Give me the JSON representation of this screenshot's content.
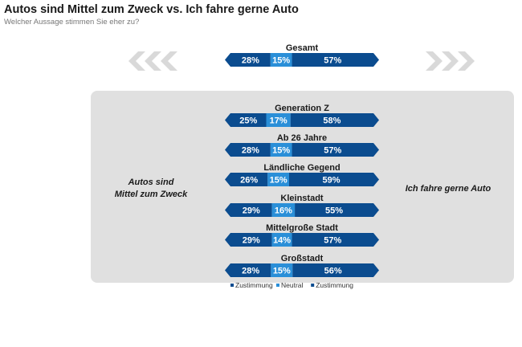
{
  "title": "Autos sind Mittel zum Zweck vs. Ich fahre gerne Auto",
  "subtitle": "Welcher Aussage stimmen Sie eher zu?",
  "colors": {
    "agree_left": "#0b4c8f",
    "neutral": "#2a8fd8",
    "agree_right": "#0b4c8f",
    "panel": "#e0e0e0",
    "chevrons": "#d9d9d9"
  },
  "chart_data": {
    "type": "bar",
    "orientation": "horizontal-stacked",
    "left_label": "Autos sind Mittel zum Zweck",
    "left_label_lines": [
      "Autos sind",
      "Mittel zum Zweck"
    ],
    "right_label": "Ich fahre gerne Auto",
    "categories": [
      "Gesamt",
      "Generation Z",
      "Ab 26 Jahre",
      "Ländliche Gegend",
      "Kleinstadt",
      "Mittelgroße Stadt",
      "Großstadt"
    ],
    "series": [
      {
        "name": "Zustimmung",
        "values": [
          28,
          25,
          28,
          26,
          29,
          29,
          28
        ]
      },
      {
        "name": "Neutral",
        "values": [
          15,
          17,
          15,
          15,
          16,
          14,
          15
        ]
      },
      {
        "name": "Zustimmung",
        "values": [
          57,
          58,
          57,
          59,
          55,
          57,
          56
        ]
      }
    ],
    "unit": "%",
    "legend": "bottom"
  }
}
